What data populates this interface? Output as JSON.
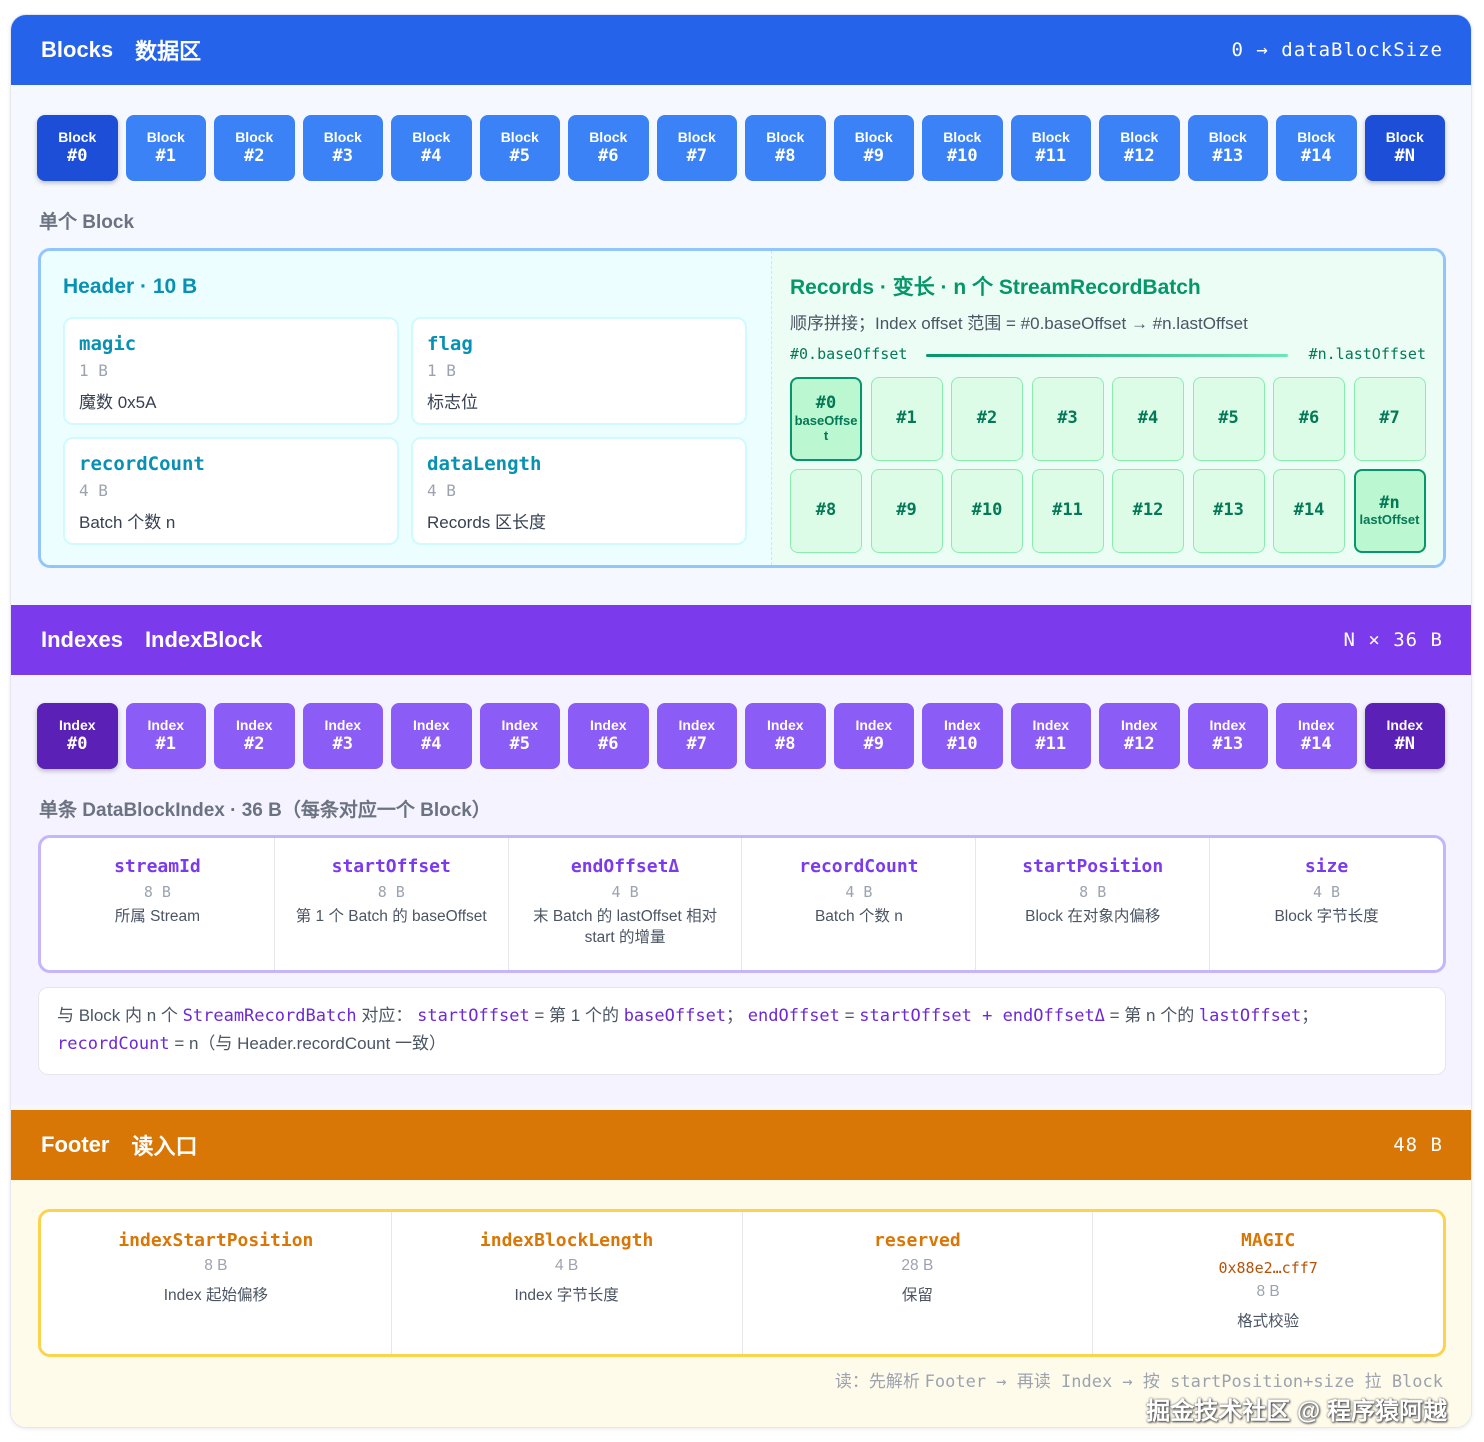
{
  "colors": {
    "blocks": "#2563eb",
    "indexes": "#7c3aed",
    "footer": "#d97706",
    "records": "#059669",
    "header": "#0891b2"
  },
  "blocks_section": {
    "title": "Blocks",
    "subtitle": "数据区",
    "range": "0 → dataBlockSize",
    "chip_prefix": "Block",
    "chips": [
      "#0",
      "#1",
      "#2",
      "#3",
      "#4",
      "#5",
      "#6",
      "#7",
      "#8",
      "#9",
      "#10",
      "#11",
      "#12",
      "#13",
      "#14",
      "#N"
    ],
    "single_label": "单个 Block"
  },
  "block_detail": {
    "header_title": "Header · 10 B",
    "fields": [
      {
        "name": "magic",
        "size": "1 B",
        "desc": "魔数 0x5A"
      },
      {
        "name": "flag",
        "size": "1 B",
        "desc": "标志位"
      },
      {
        "name": "recordCount",
        "size": "4 B",
        "desc": "Batch 个数 n"
      },
      {
        "name": "dataLength",
        "size": "4 B",
        "desc": "Records 区长度"
      }
    ],
    "records_title": "Records · 变长 · n 个 StreamRecordBatch",
    "records_desc": "顺序拼接；Index offset 范围 = #0.baseOffset → #n.lastOffset",
    "range_left": "#0.baseOffset",
    "range_right": "#n.lastOffset",
    "batches": [
      {
        "label": "#0",
        "sub": "baseOffset"
      },
      {
        "label": "#1"
      },
      {
        "label": "#2"
      },
      {
        "label": "#3"
      },
      {
        "label": "#4"
      },
      {
        "label": "#5"
      },
      {
        "label": "#6"
      },
      {
        "label": "#7"
      },
      {
        "label": "#8"
      },
      {
        "label": "#9"
      },
      {
        "label": "#10"
      },
      {
        "label": "#11"
      },
      {
        "label": "#12"
      },
      {
        "label": "#13"
      },
      {
        "label": "#14"
      },
      {
        "label": "#n",
        "sub": "lastOffset"
      }
    ]
  },
  "indexes_section": {
    "title": "Indexes",
    "subtitle": "IndexBlock",
    "size": "N × 36 B",
    "chip_prefix": "Index",
    "chips": [
      "#0",
      "#1",
      "#2",
      "#3",
      "#4",
      "#5",
      "#6",
      "#7",
      "#8",
      "#9",
      "#10",
      "#11",
      "#12",
      "#13",
      "#14",
      "#N"
    ],
    "single_label": "单条 DataBlockIndex · 36 B（每条对应一个 Block）",
    "columns": [
      {
        "name": "streamId",
        "size": "8 B",
        "desc": "所属 Stream"
      },
      {
        "name": "startOffset",
        "size": "8 B",
        "desc": "第 1 个 Batch 的 baseOffset"
      },
      {
        "name": "endOffsetΔ",
        "size": "4 B",
        "desc": "末 Batch 的 lastOffset 相对 start 的增量"
      },
      {
        "name": "recordCount",
        "size": "4 B",
        "desc": "Batch 个数 n"
      },
      {
        "name": "startPosition",
        "size": "8 B",
        "desc": "Block 在对象内偏移"
      },
      {
        "name": "size",
        "size": "4 B",
        "desc": "Block 字节长度"
      }
    ],
    "note": {
      "p1": "与 Block 内 n 个 ",
      "c1": "StreamRecordBatch",
      "p2": " 对应： ",
      "c2": "startOffset",
      "p3": " = 第 1 个的 ",
      "c3": "baseOffset",
      "p4": "； ",
      "c4": "endOffset",
      "p5": " = ",
      "c5": "startOffset + endOffsetΔ",
      "p6": " = 第 n 个的 ",
      "c6": "lastOffset",
      "p7": "；",
      "c7": "recordCount",
      "p8": " = n（与 Header.recordCount 一致）"
    }
  },
  "footer_section": {
    "title": "Footer",
    "subtitle": "读入口",
    "size": "48 B",
    "columns": [
      {
        "name": "indexStartPosition",
        "size": "8 B",
        "desc": "Index 起始偏移"
      },
      {
        "name": "indexBlockLength",
        "size": "4 B",
        "desc": "Index 字节长度"
      },
      {
        "name": "reserved",
        "size": "28 B",
        "desc": "保留"
      },
      {
        "name": "MAGIC",
        "value": "0x88e2…cff7",
        "size": "8 B",
        "desc": "格式校验"
      }
    ],
    "read_note_a": "读：先解析 ",
    "read_note_b": "Footer → 再读 Index → 按 startPosition+size 拉 Block"
  },
  "watermark": "掘金技术社区 @ 程序猿阿越"
}
